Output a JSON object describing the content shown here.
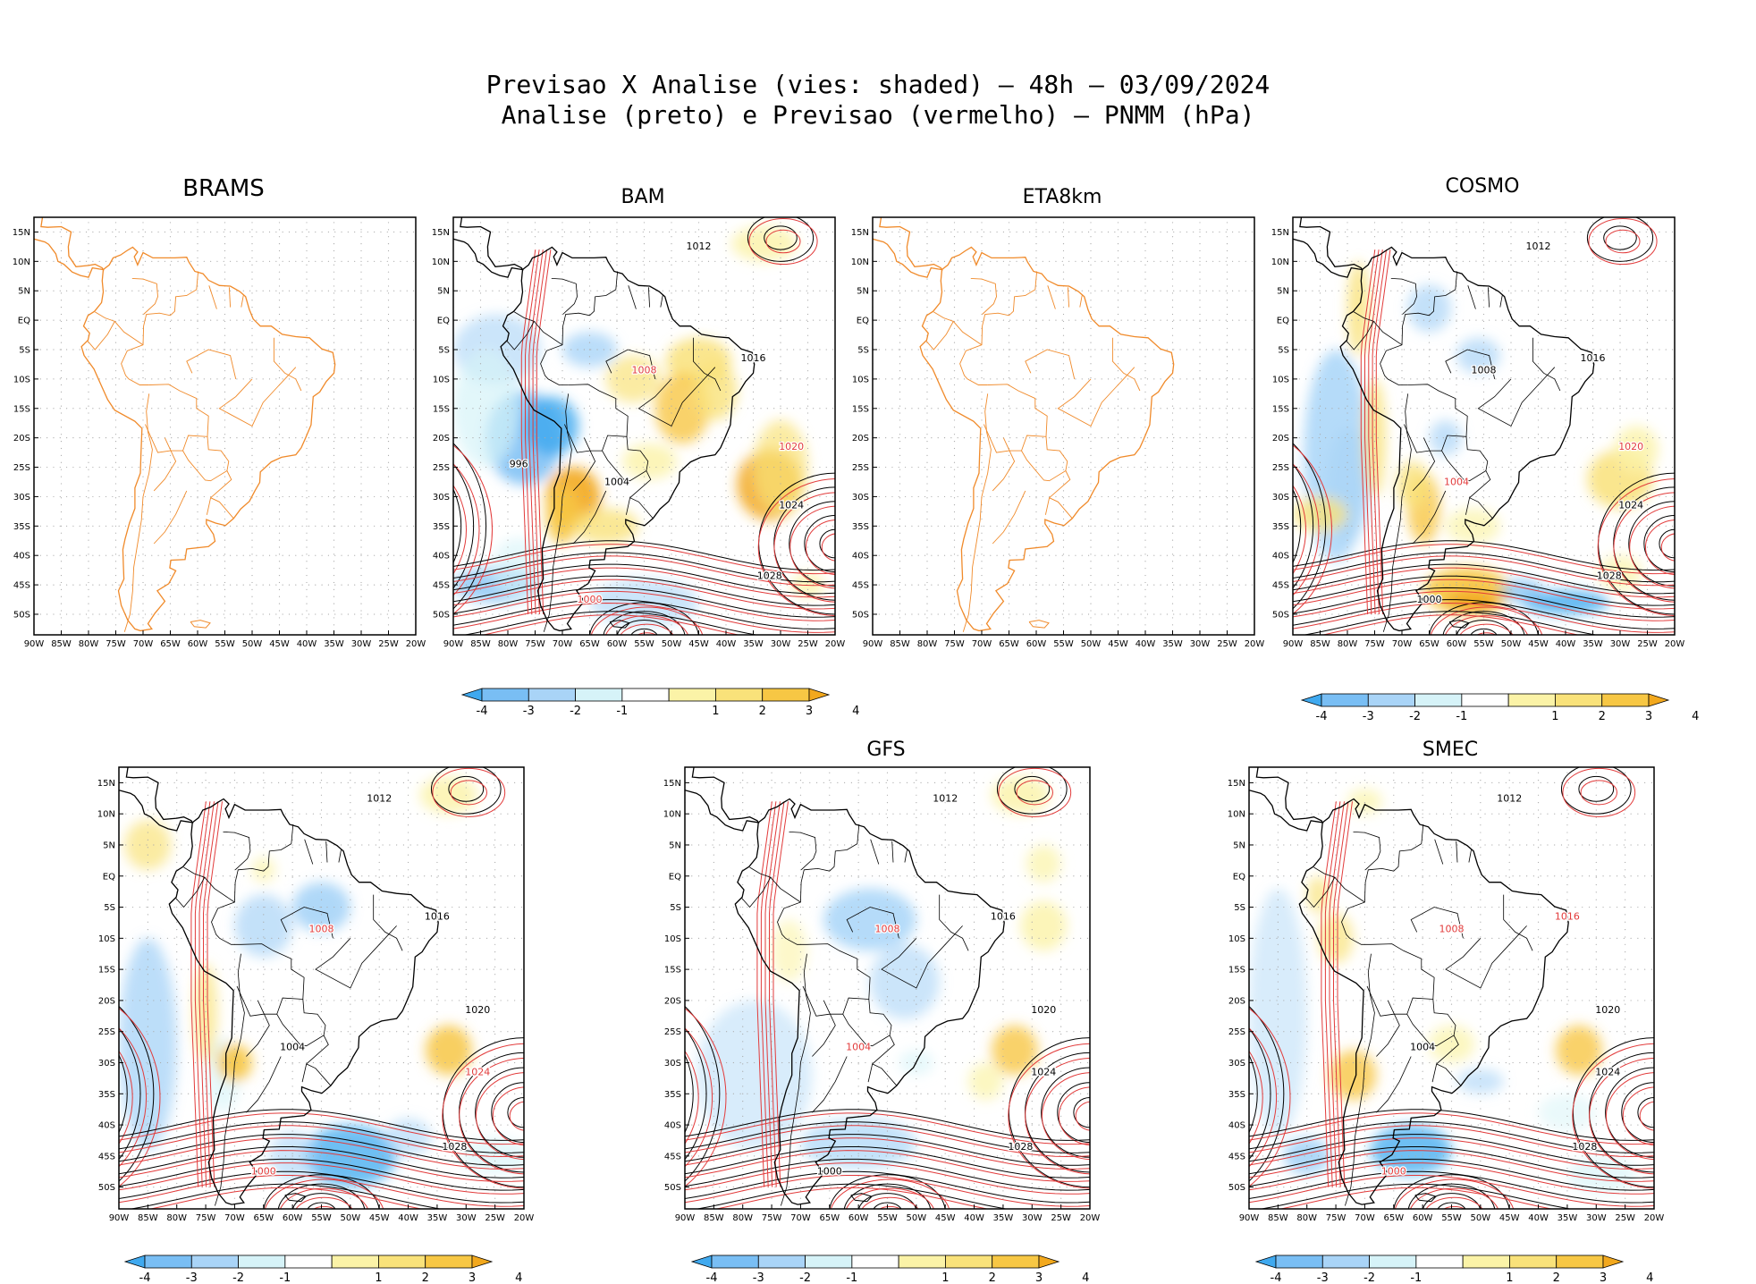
{
  "title": {
    "line1": "Previsao X Analise (vies: shaded) – 48h – 03/09/2024",
    "line2": "Analise (preto) e Previsao (vermelho) – PNMM (hPa)"
  },
  "axes": {
    "lat_labels": [
      "15N",
      "10N",
      "5N",
      "EQ",
      "5S",
      "10S",
      "15S",
      "20S",
      "25S",
      "30S",
      "35S",
      "40S",
      "45S",
      "50S"
    ],
    "lon_labels": [
      "90W",
      "85W",
      "80W",
      "75W",
      "70W",
      "65W",
      "60W",
      "55W",
      "50W",
      "45W",
      "40W",
      "35W",
      "30W",
      "25W",
      "20W"
    ]
  },
  "colorbar": {
    "labels": [
      "-4",
      "-3",
      "-2",
      "-1",
      "1",
      "2",
      "3",
      "4"
    ],
    "colors": [
      "#3fa9ef",
      "#79bef4",
      "#a9d4f7",
      "#d6f3f8",
      "#ffffff",
      "#fbf3a7",
      "#f9e27a",
      "#f7c744",
      "#f2a81d"
    ]
  },
  "colors": {
    "coastline_outline": "#f08a2a",
    "analysis_contour": "#000000",
    "forecast_contour": "#e23b3b",
    "grid_dots": "#aaaaaa"
  },
  "panels": [
    {
      "id": "brams",
      "title": "BRAMS",
      "mode": "outline"
    },
    {
      "id": "bam",
      "title": "BAM",
      "mode": "bias",
      "colorbar": true,
      "contour_labels": [
        {
          "text": "1012",
          "c": "k"
        },
        {
          "text": "1016",
          "c": "k"
        },
        {
          "text": "1020",
          "c": "r"
        },
        {
          "text": "1024",
          "c": "k"
        },
        {
          "text": "1028",
          "c": "k"
        },
        {
          "text": "1008",
          "c": "r"
        },
        {
          "text": "1004",
          "c": "k"
        },
        {
          "text": "1000",
          "c": "r"
        },
        {
          "text": "996",
          "c": "k"
        }
      ]
    },
    {
      "id": "eta8km",
      "title": "ETA8km",
      "mode": "outline"
    },
    {
      "id": "cosmo",
      "title": "COSMO",
      "mode": "bias",
      "colorbar": true,
      "contour_labels": [
        {
          "text": "1012",
          "c": "k"
        },
        {
          "text": "1016",
          "c": "k"
        },
        {
          "text": "1020",
          "c": "r"
        },
        {
          "text": "1024",
          "c": "k"
        },
        {
          "text": "1028",
          "c": "k"
        },
        {
          "text": "1008",
          "c": "k"
        },
        {
          "text": "1004",
          "c": "r"
        },
        {
          "text": "1000",
          "c": "k"
        }
      ]
    },
    {
      "id": "unnamed",
      "title": "",
      "mode": "bias",
      "colorbar": true,
      "contour_labels": [
        {
          "text": "1012",
          "c": "k"
        },
        {
          "text": "1016",
          "c": "k"
        },
        {
          "text": "1020",
          "c": "k"
        },
        {
          "text": "1024",
          "c": "r"
        },
        {
          "text": "1028",
          "c": "k"
        },
        {
          "text": "1008",
          "c": "r"
        },
        {
          "text": "1004",
          "c": "k"
        },
        {
          "text": "1000",
          "c": "r"
        }
      ]
    },
    {
      "id": "gfs",
      "title": "GFS",
      "mode": "bias",
      "colorbar": true,
      "contour_labels": [
        {
          "text": "1012",
          "c": "k"
        },
        {
          "text": "1016",
          "c": "k"
        },
        {
          "text": "1020",
          "c": "k"
        },
        {
          "text": "1024",
          "c": "k"
        },
        {
          "text": "1028",
          "c": "k"
        },
        {
          "text": "1008",
          "c": "r"
        },
        {
          "text": "1004",
          "c": "r"
        },
        {
          "text": "1000",
          "c": "k"
        }
      ]
    },
    {
      "id": "smec",
      "title": "SMEC",
      "mode": "bias",
      "colorbar": true,
      "contour_labels": [
        {
          "text": "1012",
          "c": "k"
        },
        {
          "text": "1016",
          "c": "r"
        },
        {
          "text": "1020",
          "c": "k"
        },
        {
          "text": "1024",
          "c": "k"
        },
        {
          "text": "1028",
          "c": "k"
        },
        {
          "text": "1008",
          "c": "r"
        },
        {
          "text": "1004",
          "c": "k"
        },
        {
          "text": "1000",
          "c": "r"
        }
      ]
    }
  ]
}
